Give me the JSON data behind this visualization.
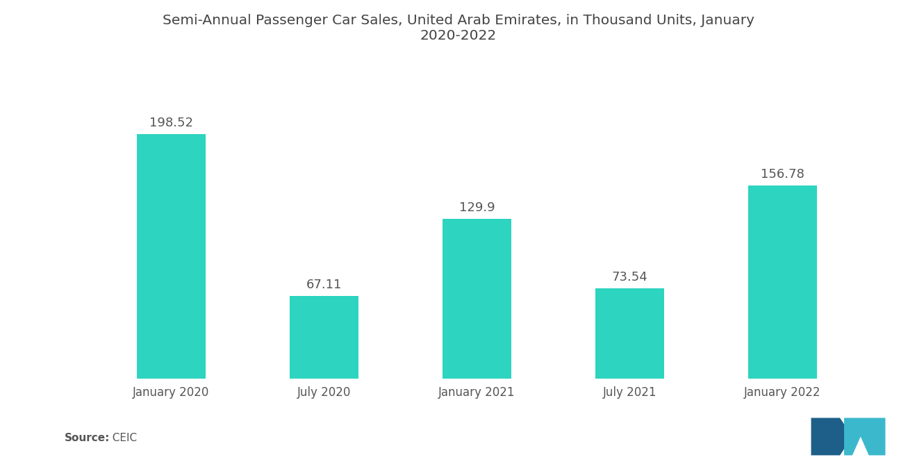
{
  "title": "Semi-Annual Passenger Car Sales, United Arab Emirates, in Thousand Units, January\n2020-2022",
  "categories": [
    "January 2020",
    "July 2020",
    "January 2021",
    "July 2021",
    "January 2022"
  ],
  "values": [
    198.52,
    67.11,
    129.9,
    73.54,
    156.78
  ],
  "bar_color": "#2DD4BF",
  "label_color": "#555555",
  "title_color": "#444444",
  "source_label": "Source:",
  "source_value": "  CEIC",
  "background_color": "#ffffff",
  "bar_width": 0.45,
  "ylim": [
    0,
    240
  ],
  "title_fontsize": 14.5,
  "label_fontsize": 13,
  "tick_fontsize": 12,
  "source_fontsize": 11,
  "logo_color1": "#2A6496",
  "logo_color2": "#5BC8D8"
}
